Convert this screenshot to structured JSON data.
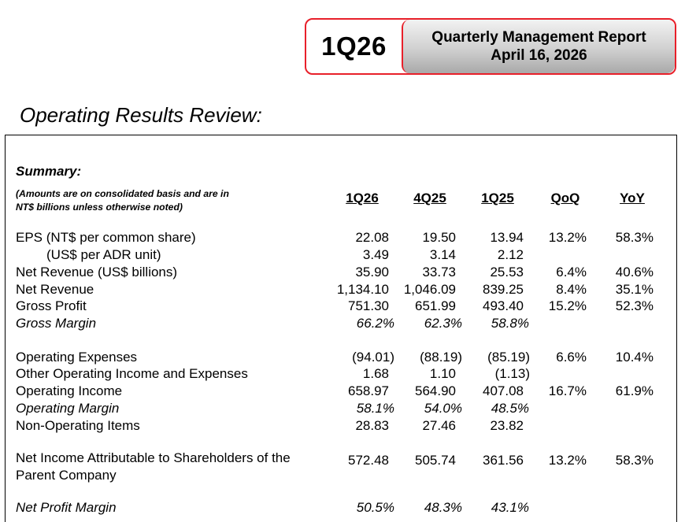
{
  "header": {
    "quarter_code": "1Q26",
    "report_title": "Quarterly Management Report",
    "report_date": "April 16, 2026",
    "accent_color": "#e8202a"
  },
  "section": {
    "title": "Operating Results Review:"
  },
  "summary": {
    "label": "Summary:",
    "note_line1": "(Amounts are on consolidated basis and are in",
    "note_line2": "NT$ billions unless otherwise noted)",
    "columns": [
      "1Q26",
      "4Q25",
      "1Q25",
      "QoQ",
      "YoY"
    ],
    "rows": [
      {
        "label": "EPS (NT$ per common share)",
        "values": [
          "22.08",
          "19.50",
          "13.94",
          "13.2%",
          "58.3%"
        ]
      },
      {
        "label": "(US$ per ADR unit)",
        "values": [
          "3.49",
          "3.14",
          "2.12",
          "",
          ""
        ]
      },
      {
        "label": "Net Revenue (US$ billions)",
        "values": [
          "35.90",
          "33.73",
          "25.53",
          "6.4%",
          "40.6%"
        ]
      },
      {
        "label": "Net Revenue",
        "values": [
          "1,134.10",
          "1,046.09",
          "839.25",
          "8.4%",
          "35.1%"
        ]
      },
      {
        "label": "Gross Profit",
        "values": [
          "751.30",
          "651.99",
          "493.40",
          "15.2%",
          "52.3%"
        ]
      },
      {
        "label": "Gross Margin",
        "values": [
          "66.2%",
          "62.3%",
          "58.8%",
          "",
          ""
        ]
      },
      {
        "label": "Operating Expenses",
        "values": [
          "(94.01)",
          "(88.19)",
          "(85.19)",
          "6.6%",
          "10.4%"
        ]
      },
      {
        "label": "Other Operating Income and Expenses",
        "values": [
          "1.68",
          "1.10",
          "(1.13)",
          "",
          ""
        ]
      },
      {
        "label": "Operating Income",
        "values": [
          "658.97",
          "564.90",
          "407.08",
          "16.7%",
          "61.9%"
        ]
      },
      {
        "label": "Operating Margin",
        "values": [
          "58.1%",
          "54.0%",
          "48.5%",
          "",
          ""
        ]
      },
      {
        "label": "Non-Operating Items",
        "values": [
          "28.83",
          "27.46",
          "23.82",
          "",
          ""
        ]
      },
      {
        "label_line1": "Net Income Attributable to Shareholders of the",
        "label_line2": "Parent Company",
        "values": [
          "572.48",
          "505.74",
          "361.56",
          "13.2%",
          "58.3%"
        ]
      },
      {
        "label": "Net Profit Margin",
        "values": [
          "50.5%",
          "48.3%",
          "43.1%",
          "",
          ""
        ]
      }
    ]
  }
}
